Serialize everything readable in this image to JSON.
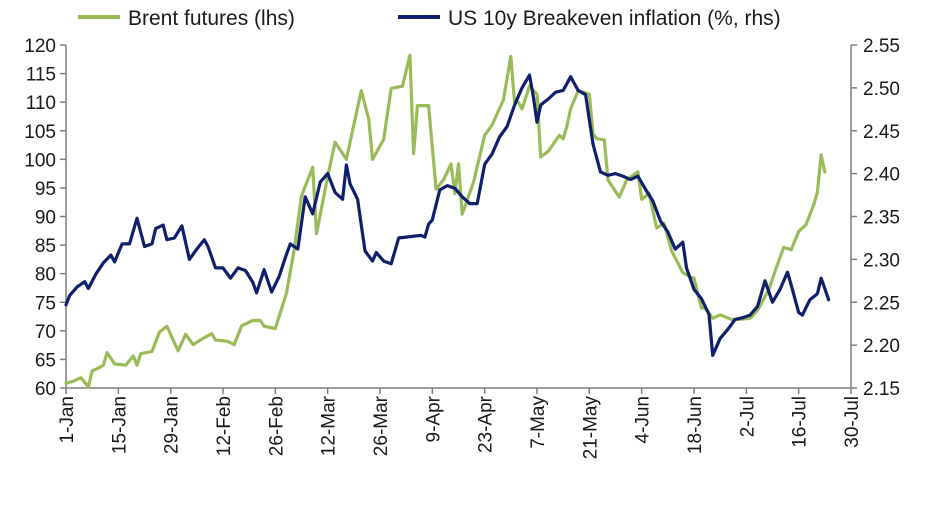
{
  "chart_data": {
    "type": "line",
    "title": "",
    "xlabel": "",
    "ylabel_left": "",
    "ylabel_right": "",
    "grid": false,
    "legend_position": "top",
    "x_axis": {
      "type": "date",
      "range": [
        "2018-01-01",
        "2018-07-30"
      ],
      "ticks": [
        "2018-01-01",
        "2018-01-15",
        "2018-01-29",
        "2018-02-12",
        "2018-02-26",
        "2018-03-12",
        "2018-03-26",
        "2018-04-09",
        "2018-04-23",
        "2018-05-07",
        "2018-05-21",
        "2018-06-04",
        "2018-06-18",
        "2018-07-02",
        "2018-07-16",
        "2018-07-30"
      ],
      "tick_labels": [
        "1-Jan",
        "15-Jan",
        "29-Jan",
        "12-Feb",
        "26-Feb",
        "12-Mar",
        "26-Mar",
        "9-Apr",
        "23-Apr",
        "7-May",
        "21-May",
        "4-Jun",
        "18-Jun",
        "2-Jul",
        "16-Jul",
        "30-Jul"
      ]
    },
    "y_left": {
      "range": [
        60,
        120
      ],
      "ticks": [
        60,
        65,
        70,
        75,
        80,
        85,
        90,
        95,
        100,
        105,
        110,
        115,
        120
      ],
      "tick_labels": [
        "60",
        "65",
        "70",
        "75",
        "80",
        "85",
        "90",
        "95",
        "100",
        "105",
        "110",
        "115",
        "120"
      ]
    },
    "y_right": {
      "range": [
        2.15,
        2.55
      ],
      "ticks": [
        2.15,
        2.2,
        2.25,
        2.3,
        2.35,
        2.4,
        2.45,
        2.5,
        2.55
      ],
      "tick_labels": [
        "2.15",
        "2.20",
        "2.25",
        "2.30",
        "2.35",
        "2.40",
        "2.45",
        "2.50",
        "2.55"
      ]
    },
    "series": [
      {
        "name": "Brent futures (lhs)",
        "axis": "left",
        "color": "#9bbb59",
        "points": [
          [
            "2018-01-01",
            60.8
          ],
          [
            "2018-01-03",
            61.2
          ],
          [
            "2018-01-05",
            61.8
          ],
          [
            "2018-01-07",
            60.2
          ],
          [
            "2018-01-08",
            63.0
          ],
          [
            "2018-01-10",
            63.6
          ],
          [
            "2018-01-11",
            64.0
          ],
          [
            "2018-01-12",
            66.2
          ],
          [
            "2018-01-14",
            64.2
          ],
          [
            "2018-01-17",
            64.0
          ],
          [
            "2018-01-19",
            65.6
          ],
          [
            "2018-01-20",
            64.0
          ],
          [
            "2018-01-21",
            66.0
          ],
          [
            "2018-01-24",
            66.4
          ],
          [
            "2018-01-26",
            69.8
          ],
          [
            "2018-01-28",
            70.8
          ],
          [
            "2018-01-31",
            66.5
          ],
          [
            "2018-02-02",
            69.4
          ],
          [
            "2018-02-04",
            67.6
          ],
          [
            "2018-02-07",
            68.8
          ],
          [
            "2018-02-09",
            69.5
          ],
          [
            "2018-02-10",
            68.4
          ],
          [
            "2018-02-13",
            68.2
          ],
          [
            "2018-02-15",
            67.6
          ],
          [
            "2018-02-17",
            70.9
          ],
          [
            "2018-02-20",
            71.8
          ],
          [
            "2018-02-22",
            71.8
          ],
          [
            "2018-02-23",
            70.8
          ],
          [
            "2018-02-26",
            70.4
          ],
          [
            "2018-03-01",
            76.6
          ],
          [
            "2018-03-03",
            84.0
          ],
          [
            "2018-03-05",
            93.6
          ],
          [
            "2018-03-08",
            98.6
          ],
          [
            "2018-03-09",
            87.0
          ],
          [
            "2018-03-12",
            97.0
          ],
          [
            "2018-03-14",
            103.0
          ],
          [
            "2018-03-17",
            100.0
          ],
          [
            "2018-03-19",
            106.0
          ],
          [
            "2018-03-21",
            112.0
          ],
          [
            "2018-03-23",
            107.0
          ],
          [
            "2018-03-24",
            100.0
          ],
          [
            "2018-03-27",
            103.5
          ],
          [
            "2018-03-29",
            112.4
          ],
          [
            "2018-04-01",
            112.8
          ],
          [
            "2018-04-03",
            118.2
          ],
          [
            "2018-04-04",
            101.0
          ],
          [
            "2018-04-05",
            109.4
          ],
          [
            "2018-04-08",
            109.4
          ],
          [
            "2018-04-10",
            94.8
          ],
          [
            "2018-04-12",
            96.4
          ],
          [
            "2018-04-14",
            99.2
          ],
          [
            "2018-04-15",
            94.0
          ],
          [
            "2018-04-16",
            99.2
          ],
          [
            "2018-04-17",
            90.4
          ],
          [
            "2018-04-20",
            96.0
          ],
          [
            "2018-04-23",
            104.2
          ],
          [
            "2018-04-25",
            106.0
          ],
          [
            "2018-04-28",
            110.4
          ],
          [
            "2018-04-30",
            118.0
          ],
          [
            "2018-05-01",
            110.0
          ],
          [
            "2018-05-02",
            110.0
          ],
          [
            "2018-05-03",
            108.8
          ],
          [
            "2018-05-05",
            112.8
          ],
          [
            "2018-05-07",
            111.4
          ],
          [
            "2018-05-08",
            100.4
          ],
          [
            "2018-05-10",
            101.4
          ],
          [
            "2018-05-13",
            104.2
          ],
          [
            "2018-05-14",
            103.6
          ],
          [
            "2018-05-15",
            105.8
          ],
          [
            "2018-05-16",
            108.8
          ],
          [
            "2018-05-18",
            112.0
          ],
          [
            "2018-05-21",
            111.4
          ],
          [
            "2018-05-22",
            104.4
          ],
          [
            "2018-05-23",
            103.6
          ],
          [
            "2018-05-25",
            103.4
          ],
          [
            "2018-05-26",
            96.4
          ],
          [
            "2018-05-29",
            93.4
          ],
          [
            "2018-05-31",
            96.4
          ],
          [
            "2018-06-03",
            97.8
          ],
          [
            "2018-06-04",
            93.0
          ],
          [
            "2018-06-06",
            94.0
          ],
          [
            "2018-06-08",
            88.0
          ],
          [
            "2018-06-10",
            88.8
          ],
          [
            "2018-06-12",
            84.0
          ],
          [
            "2018-06-15",
            80.2
          ],
          [
            "2018-06-17",
            79.4
          ],
          [
            "2018-06-18",
            79.2
          ],
          [
            "2018-06-20",
            74.0
          ],
          [
            "2018-06-21",
            74.0
          ],
          [
            "2018-06-23",
            72.2
          ],
          [
            "2018-06-25",
            72.8
          ],
          [
            "2018-06-28",
            72.0
          ],
          [
            "2018-06-30",
            72.0
          ],
          [
            "2018-07-03",
            72.2
          ],
          [
            "2018-07-05",
            73.6
          ],
          [
            "2018-07-08",
            77.2
          ],
          [
            "2018-07-10",
            81.0
          ],
          [
            "2018-07-12",
            84.6
          ],
          [
            "2018-07-14",
            84.2
          ],
          [
            "2018-07-16",
            87.4
          ],
          [
            "2018-07-18",
            88.6
          ],
          [
            "2018-07-20",
            92.0
          ],
          [
            "2018-07-21",
            94.2
          ],
          [
            "2018-07-22",
            100.8
          ],
          [
            "2018-07-23",
            97.8
          ]
        ]
      },
      {
        "name": "US 10y Breakeven inflation (%, rhs)",
        "axis": "right",
        "color": "#0f1f6b",
        "points": [
          [
            "2018-01-01",
            2.247
          ],
          [
            "2018-01-02",
            2.258
          ],
          [
            "2018-01-04",
            2.268
          ],
          [
            "2018-01-06",
            2.274
          ],
          [
            "2018-01-07",
            2.266
          ],
          [
            "2018-01-09",
            2.283
          ],
          [
            "2018-01-11",
            2.296
          ],
          [
            "2018-01-13",
            2.305
          ],
          [
            "2018-01-14",
            2.297
          ],
          [
            "2018-01-16",
            2.318
          ],
          [
            "2018-01-18",
            2.318
          ],
          [
            "2018-01-20",
            2.348
          ],
          [
            "2018-01-22",
            2.315
          ],
          [
            "2018-01-24",
            2.318
          ],
          [
            "2018-01-25",
            2.336
          ],
          [
            "2018-01-27",
            2.34
          ],
          [
            "2018-01-28",
            2.323
          ],
          [
            "2018-01-30",
            2.325
          ],
          [
            "2018-02-01",
            2.339
          ],
          [
            "2018-02-03",
            2.3
          ],
          [
            "2018-02-05",
            2.312
          ],
          [
            "2018-02-07",
            2.323
          ],
          [
            "2018-02-08",
            2.315
          ],
          [
            "2018-02-10",
            2.29
          ],
          [
            "2018-02-12",
            2.29
          ],
          [
            "2018-02-14",
            2.278
          ],
          [
            "2018-02-16",
            2.29
          ],
          [
            "2018-02-18",
            2.287
          ],
          [
            "2018-02-20",
            2.273
          ],
          [
            "2018-02-21",
            2.261
          ],
          [
            "2018-02-23",
            2.288
          ],
          [
            "2018-02-25",
            2.262
          ],
          [
            "2018-02-27",
            2.28
          ],
          [
            "2018-03-01",
            2.306
          ],
          [
            "2018-03-02",
            2.318
          ],
          [
            "2018-03-04",
            2.312
          ],
          [
            "2018-03-06",
            2.373
          ],
          [
            "2018-03-08",
            2.353
          ],
          [
            "2018-03-10",
            2.39
          ],
          [
            "2018-03-12",
            2.4
          ],
          [
            "2018-03-14",
            2.378
          ],
          [
            "2018-03-16",
            2.37
          ],
          [
            "2018-03-17",
            2.41
          ],
          [
            "2018-03-18",
            2.388
          ],
          [
            "2018-03-20",
            2.37
          ],
          [
            "2018-03-22",
            2.31
          ],
          [
            "2018-03-24",
            2.298
          ],
          [
            "2018-03-25",
            2.308
          ],
          [
            "2018-03-27",
            2.298
          ],
          [
            "2018-03-29",
            2.295
          ],
          [
            "2018-03-31",
            2.325
          ],
          [
            "2018-04-02",
            2.326
          ],
          [
            "2018-04-04",
            2.327
          ],
          [
            "2018-04-06",
            2.328
          ],
          [
            "2018-04-07",
            2.326
          ],
          [
            "2018-04-08",
            2.341
          ],
          [
            "2018-04-09",
            2.346
          ],
          [
            "2018-04-11",
            2.381
          ],
          [
            "2018-04-13",
            2.386
          ],
          [
            "2018-04-15",
            2.383
          ],
          [
            "2018-04-17",
            2.373
          ],
          [
            "2018-04-19",
            2.365
          ],
          [
            "2018-04-21",
            2.365
          ],
          [
            "2018-04-23",
            2.411
          ],
          [
            "2018-04-25",
            2.423
          ],
          [
            "2018-04-27",
            2.443
          ],
          [
            "2018-04-29",
            2.455
          ],
          [
            "2018-05-01",
            2.48
          ],
          [
            "2018-05-03",
            2.5
          ],
          [
            "2018-05-05",
            2.515
          ],
          [
            "2018-05-06",
            2.49
          ],
          [
            "2018-05-07",
            2.46
          ],
          [
            "2018-05-08",
            2.48
          ],
          [
            "2018-05-10",
            2.487
          ],
          [
            "2018-05-12",
            2.495
          ],
          [
            "2018-05-14",
            2.497
          ],
          [
            "2018-05-16",
            2.513
          ],
          [
            "2018-05-18",
            2.497
          ],
          [
            "2018-05-20",
            2.492
          ],
          [
            "2018-05-21",
            2.463
          ],
          [
            "2018-05-22",
            2.434
          ],
          [
            "2018-05-24",
            2.402
          ],
          [
            "2018-05-26",
            2.398
          ],
          [
            "2018-05-28",
            2.4
          ],
          [
            "2018-05-30",
            2.397
          ],
          [
            "2018-06-01",
            2.393
          ],
          [
            "2018-06-03",
            2.397
          ],
          [
            "2018-06-05",
            2.382
          ],
          [
            "2018-06-07",
            2.368
          ],
          [
            "2018-06-09",
            2.345
          ],
          [
            "2018-06-11",
            2.332
          ],
          [
            "2018-06-13",
            2.312
          ],
          [
            "2018-06-15",
            2.32
          ],
          [
            "2018-06-16",
            2.29
          ],
          [
            "2018-06-18",
            2.265
          ],
          [
            "2018-06-20",
            2.254
          ],
          [
            "2018-06-22",
            2.236
          ],
          [
            "2018-06-23",
            2.188
          ],
          [
            "2018-06-25",
            2.208
          ],
          [
            "2018-06-27",
            2.218
          ],
          [
            "2018-06-29",
            2.23
          ],
          [
            "2018-07-01",
            2.232
          ],
          [
            "2018-07-03",
            2.235
          ],
          [
            "2018-07-05",
            2.245
          ],
          [
            "2018-07-07",
            2.275
          ],
          [
            "2018-07-09",
            2.25
          ],
          [
            "2018-07-11",
            2.265
          ],
          [
            "2018-07-13",
            2.285
          ],
          [
            "2018-07-14",
            2.27
          ],
          [
            "2018-07-16",
            2.238
          ],
          [
            "2018-07-17",
            2.235
          ],
          [
            "2018-07-19",
            2.253
          ],
          [
            "2018-07-21",
            2.26
          ],
          [
            "2018-07-22",
            2.278
          ],
          [
            "2018-07-23",
            2.266
          ],
          [
            "2018-07-24",
            2.253
          ]
        ]
      }
    ]
  }
}
